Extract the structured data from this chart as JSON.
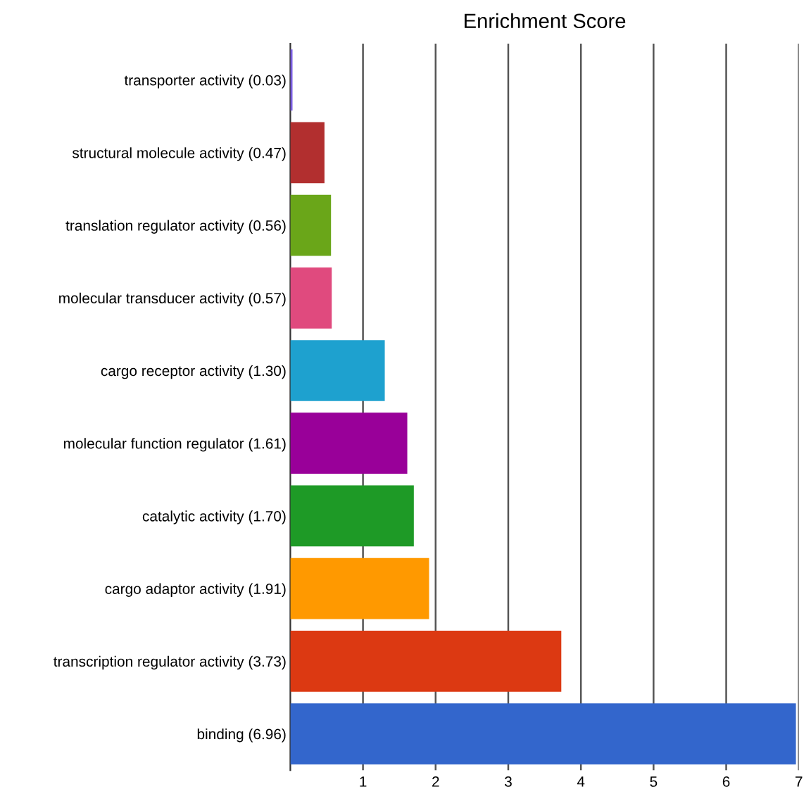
{
  "chart_data": {
    "type": "bar",
    "orientation": "horizontal",
    "title": "Enrichment Score",
    "categories": [
      "transporter activity (0.03)",
      "structural molecule activity (0.47)",
      "translation regulator activity (0.56)",
      "molecular transducer activity (0.57)",
      "cargo receptor activity (1.30)",
      "molecular function regulator (1.61)",
      "catalytic activity (1.70)",
      "cargo adaptor activity (1.91)",
      "transcription regulator activity (3.73)",
      "binding (6.96)"
    ],
    "values": [
      0.03,
      0.47,
      0.56,
      0.57,
      1.3,
      1.61,
      1.7,
      1.91,
      3.73,
      6.96
    ],
    "colors": [
      "#7b5fe0",
      "#b22f2f",
      "#6aa619",
      "#e04a7e",
      "#1ea1cf",
      "#990099",
      "#1e9a26",
      "#ff9900",
      "#dc3912",
      "#3366cc"
    ],
    "xlim": [
      0,
      7
    ],
    "xticks": [
      1,
      2,
      3,
      4,
      5,
      6,
      7
    ],
    "grid": "x"
  }
}
